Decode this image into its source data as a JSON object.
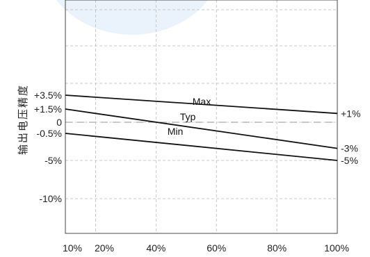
{
  "chart_data": {
    "type": "line",
    "ylabel": "输出电压精度",
    "x_ticks": [
      "10%",
      "20%",
      "40%",
      "60%",
      "80%",
      "100%"
    ],
    "x_values": [
      10,
      20,
      40,
      60,
      80,
      100
    ],
    "y_ticks": [
      "+3.5%",
      "+1.5%",
      "0",
      "-0.5%",
      "-5%",
      "-10%"
    ],
    "y_tick_values": [
      3.5,
      1.5,
      0,
      -0.5,
      -5,
      -10
    ],
    "right_ticks": [
      "+1%",
      "-3%",
      "-5%"
    ],
    "series": [
      {
        "name": "Max",
        "x": [
          10,
          100
        ],
        "y": [
          3.5,
          1
        ]
      },
      {
        "name": "Typ",
        "x": [
          10,
          100
        ],
        "y": [
          1.5,
          -3
        ]
      },
      {
        "name": "Min",
        "x": [
          10,
          100
        ],
        "y": [
          -0.5,
          -5
        ]
      }
    ],
    "reference_lines": [
      0
    ],
    "grid": true
  },
  "colors": {
    "line": "#111111",
    "grid": "#bbbbbb",
    "zero_line": "#b5b5b5",
    "background_accent": "#eaf2fb"
  }
}
